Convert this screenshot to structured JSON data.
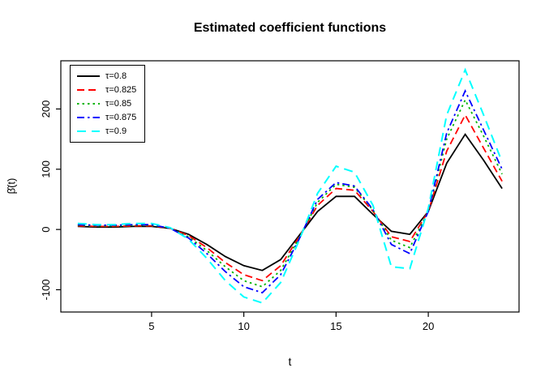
{
  "chart_data": {
    "type": "line",
    "title": "Estimated coefficient functions",
    "xlabel": "t",
    "ylabel": "β̂(t)",
    "xlim": [
      0.08,
      24.92
    ],
    "ylim": [
      -137,
      280
    ],
    "xticks": [
      5,
      10,
      15,
      20
    ],
    "yticks": [
      -100,
      0,
      100,
      200
    ],
    "grid": false,
    "legend_position": "top-left",
    "x": [
      1,
      2,
      3,
      4,
      5,
      6,
      7,
      8,
      9,
      10,
      11,
      12,
      13,
      14,
      15,
      16,
      17,
      18,
      19,
      20,
      21,
      22,
      23,
      24
    ],
    "series": [
      {
        "name": "τ=0.8",
        "color": "#000000",
        "style": "solid",
        "values": [
          5,
          4,
          4,
          5,
          5,
          2,
          -8,
          -25,
          -45,
          -60,
          -68,
          -50,
          -10,
          30,
          55,
          55,
          25,
          -3,
          -8,
          30,
          110,
          158,
          115,
          68
        ]
      },
      {
        "name": "τ=0.825",
        "color": "#ff0000",
        "style": "dashed",
        "values": [
          6,
          5,
          5,
          6,
          6,
          2,
          -10,
          -30,
          -55,
          -75,
          -85,
          -60,
          -12,
          40,
          68,
          65,
          30,
          -12,
          -20,
          30,
          130,
          190,
          135,
          80
        ]
      },
      {
        "name": "τ=0.85",
        "color": "#00b400",
        "style": "dotted",
        "values": [
          7,
          6,
          6,
          7,
          7,
          2,
          -12,
          -35,
          -62,
          -85,
          -95,
          -68,
          -14,
          45,
          75,
          70,
          32,
          -18,
          -30,
          30,
          150,
          215,
          155,
          92
        ]
      },
      {
        "name": "τ=0.875",
        "color": "#0000ff",
        "style": "dashdot",
        "values": [
          8,
          7,
          7,
          8,
          8,
          2,
          -14,
          -40,
          -70,
          -95,
          -105,
          -75,
          -16,
          50,
          78,
          72,
          33,
          -25,
          -40,
          30,
          160,
          230,
          165,
          100
        ]
      },
      {
        "name": "τ=0.9",
        "color": "#00ffff",
        "style": "longdash",
        "values": [
          10,
          8,
          8,
          10,
          10,
          3,
          -16,
          -48,
          -85,
          -112,
          -122,
          -88,
          -18,
          60,
          105,
          95,
          40,
          -62,
          -65,
          35,
          190,
          265,
          190,
          112
        ]
      }
    ]
  }
}
